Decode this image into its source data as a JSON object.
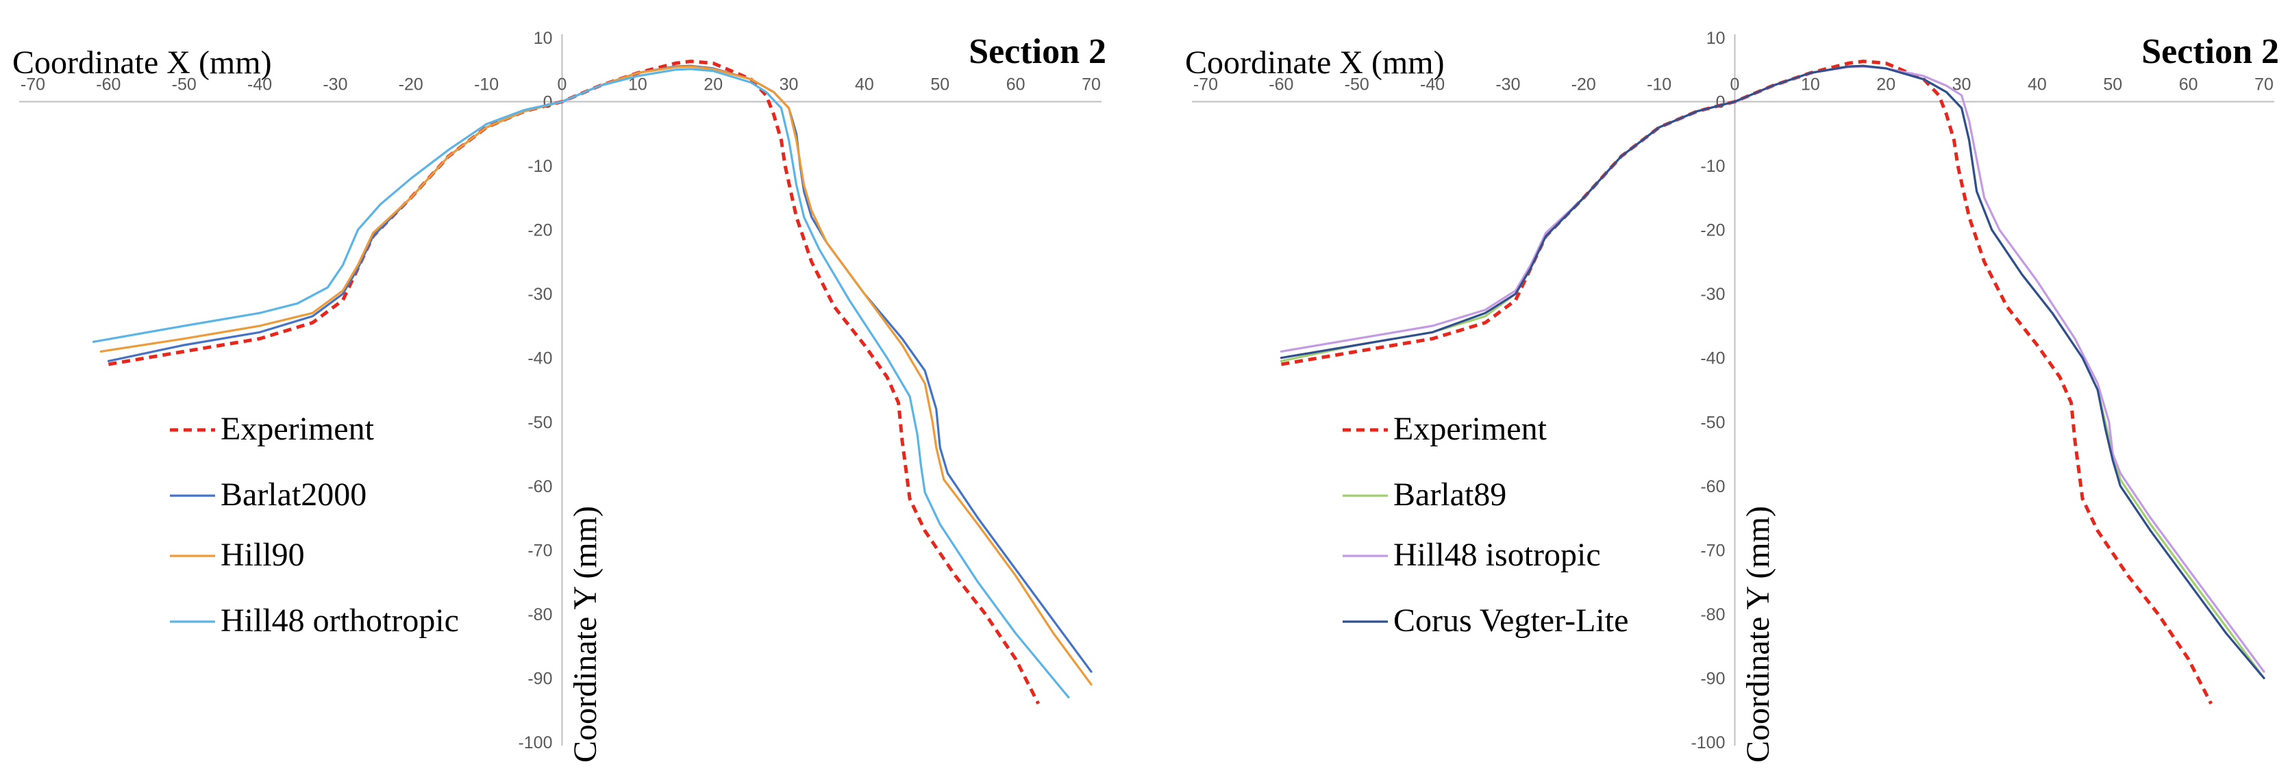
{
  "chart_data": [
    {
      "type": "line",
      "title": "Section 2",
      "xlabel": "Coordinate X (mm)",
      "ylabel": "Coordinate Y (mm)",
      "xlim": [
        -70,
        70
      ],
      "ylim": [
        -100,
        10
      ],
      "xticks": [
        -70,
        -60,
        -50,
        -40,
        -30,
        -20,
        -10,
        0,
        10,
        20,
        30,
        40,
        50,
        60,
        70
      ],
      "yticks": [
        10,
        0,
        -10,
        -20,
        -30,
        -40,
        -50,
        -60,
        -70,
        -80,
        -90,
        -100
      ],
      "grid": false,
      "legend_position": "left",
      "series": [
        {
          "name": "Experiment",
          "color": "#e8261c",
          "dash": true,
          "x": [
            -60,
            -50,
            -40,
            -33,
            -29,
            -27,
            -25,
            -20,
            -15,
            -10,
            -5,
            0,
            5,
            10,
            15,
            17,
            20,
            25,
            27,
            28,
            29,
            29.5,
            31,
            33,
            36,
            40,
            43,
            44.5,
            45,
            46,
            48,
            52,
            56,
            60,
            63
          ],
          "y": [
            -41,
            -39,
            -37,
            -34.5,
            -31,
            -26,
            -21,
            -15,
            -8.5,
            -4,
            -1.5,
            0,
            2.5,
            4.5,
            6,
            6.3,
            6,
            3.5,
            1,
            -2,
            -6,
            -10,
            -18,
            -25,
            -32,
            -38,
            -43,
            -47,
            -53,
            -62,
            -67,
            -74,
            -80,
            -87,
            -94
          ]
        },
        {
          "name": "Barlat2000",
          "color": "#4472c4",
          "dash": false,
          "x": [
            -60,
            -50,
            -40,
            -33,
            -29,
            -27,
            -25,
            -20,
            -15,
            -10,
            -5,
            0,
            5,
            10,
            15,
            17,
            20,
            25,
            28,
            30,
            31,
            31.5,
            32,
            33,
            35,
            40,
            45,
            48,
            49.5,
            50,
            51,
            55,
            60,
            65,
            70
          ],
          "y": [
            -40.5,
            -38,
            -36,
            -33.5,
            -30,
            -26,
            -21,
            -15,
            -8.5,
            -4,
            -1.5,
            0,
            2.5,
            4.5,
            5.5,
            5.6,
            5.2,
            3.5,
            1.5,
            -1,
            -5,
            -10,
            -14,
            -18,
            -22,
            -30,
            -37,
            -42,
            -48,
            -54,
            -58,
            -65,
            -73,
            -81,
            -89
          ]
        },
        {
          "name": "Hill90",
          "color": "#ed9b38",
          "dash": false,
          "x": [
            -61,
            -50,
            -40,
            -33,
            -29,
            -27,
            -25,
            -20,
            -15,
            -10,
            -5,
            0,
            5,
            10,
            15,
            17,
            20,
            25,
            28,
            30,
            31,
            32,
            33,
            35,
            40,
            45,
            48,
            49,
            49.5,
            50.5,
            55,
            60,
            65,
            70
          ],
          "y": [
            -39,
            -37,
            -35,
            -33,
            -29.5,
            -25.5,
            -20.5,
            -15,
            -8.5,
            -4,
            -1.5,
            0,
            2.5,
            4.5,
            5.4,
            5.5,
            5.1,
            3.5,
            1.5,
            -1,
            -6,
            -13,
            -17,
            -22,
            -30,
            -38,
            -44,
            -50,
            -54,
            -59,
            -66,
            -74,
            -83,
            -91
          ]
        },
        {
          "name": "Hill48 orthotropic",
          "color": "#5bb4e6",
          "dash": false,
          "x": [
            -62,
            -50,
            -40,
            -35,
            -31,
            -29,
            -27,
            -24,
            -20,
            -15,
            -10,
            -5,
            0,
            5,
            10,
            15,
            17,
            20,
            25,
            27,
            29,
            30,
            31,
            32,
            34,
            38,
            43,
            46,
            47,
            47.5,
            48,
            50,
            55,
            60,
            67
          ],
          "y": [
            -37.5,
            -35,
            -33,
            -31.5,
            -29,
            -25.5,
            -20,
            -16,
            -12,
            -7.5,
            -3.5,
            -1.3,
            0,
            2.5,
            4,
            5,
            5.1,
            4.8,
            3,
            1.5,
            -1,
            -6,
            -13,
            -18,
            -23,
            -31,
            -40,
            -46,
            -52,
            -57,
            -61,
            -66,
            -75,
            -83,
            -93
          ]
        }
      ]
    },
    {
      "type": "line",
      "title": "Section 2",
      "xlabel": "Coordinate X (mm)",
      "ylabel": "Coordinate Y (mm)",
      "xlim": [
        -70,
        70
      ],
      "ylim": [
        -100,
        10
      ],
      "xticks": [
        -70,
        -60,
        -50,
        -40,
        -30,
        -20,
        -10,
        0,
        10,
        20,
        30,
        40,
        50,
        60,
        70
      ],
      "yticks": [
        10,
        0,
        -10,
        -20,
        -30,
        -40,
        -50,
        -60,
        -70,
        -80,
        -90,
        -100
      ],
      "grid": false,
      "legend_position": "left",
      "series": [
        {
          "name": "Experiment",
          "color": "#e8261c",
          "dash": true,
          "x": [
            -60,
            -50,
            -40,
            -33,
            -29,
            -27,
            -25,
            -20,
            -15,
            -10,
            -5,
            0,
            5,
            10,
            15,
            17,
            20,
            25,
            27,
            28,
            29,
            29.5,
            31,
            33,
            36,
            40,
            43,
            44.5,
            45,
            46,
            48,
            52,
            56,
            60,
            63
          ],
          "y": [
            -41,
            -39,
            -37,
            -34.5,
            -31,
            -26,
            -21,
            -15,
            -8.5,
            -4,
            -1.5,
            0,
            2.5,
            4.5,
            6,
            6.3,
            6,
            3.5,
            1,
            -2,
            -6,
            -10,
            -18,
            -25,
            -32,
            -38,
            -43,
            -47,
            -53,
            -62,
            -67,
            -74,
            -80,
            -87,
            -94
          ]
        },
        {
          "name": "Barlat89",
          "color": "#9fcf6e",
          "dash": false,
          "x": [
            -60,
            -50,
            -40,
            -33,
            -29,
            -27,
            -25,
            -20,
            -15,
            -10,
            -5,
            0,
            5,
            10,
            15,
            17,
            20,
            25,
            28,
            30,
            31,
            32,
            34,
            38,
            42,
            46,
            48,
            49,
            50,
            51,
            55,
            60,
            65,
            70
          ],
          "y": [
            -40.5,
            -38,
            -36,
            -33.5,
            -30,
            -26,
            -21,
            -15,
            -8.5,
            -4,
            -1.5,
            0,
            2.5,
            4.5,
            5.5,
            5.6,
            5.2,
            3.5,
            1.5,
            -1,
            -6,
            -14,
            -20,
            -27,
            -33,
            -40,
            -45,
            -50,
            -55,
            -59,
            -66,
            -74,
            -82,
            -90
          ]
        },
        {
          "name": "Hill48 isotropic",
          "color": "#c39be3",
          "dash": false,
          "x": [
            -60,
            -50,
            -40,
            -33,
            -29,
            -27,
            -25,
            -20,
            -15,
            -10,
            -5,
            0,
            5,
            10,
            15,
            17,
            20,
            25,
            28,
            30,
            31,
            32,
            33,
            35,
            40,
            45,
            48,
            49.5,
            50,
            51,
            55,
            60,
            65,
            70
          ],
          "y": [
            -39,
            -37,
            -35,
            -32.5,
            -29.5,
            -25.5,
            -20.5,
            -15,
            -8.5,
            -4,
            -1.5,
            0,
            2.5,
            4.5,
            5.4,
            5.5,
            5.2,
            4,
            2.5,
            1,
            -3,
            -9,
            -15,
            -20,
            -28,
            -37,
            -44,
            -50,
            -55,
            -58,
            -65,
            -73,
            -81,
            -89
          ]
        },
        {
          "name": "Corus Vegter-Lite",
          "color": "#2f4f8f",
          "dash": false,
          "x": [
            -60,
            -50,
            -40,
            -33,
            -29,
            -27,
            -25,
            -20,
            -15,
            -10,
            -5,
            0,
            5,
            10,
            15,
            17,
            20,
            25,
            28,
            30,
            31,
            32,
            34,
            38,
            42,
            46,
            48,
            49,
            50,
            51,
            55,
            60,
            65,
            70
          ],
          "y": [
            -40,
            -38,
            -36,
            -33,
            -30,
            -26,
            -21,
            -15,
            -8.5,
            -4,
            -1.5,
            0,
            2.5,
            4.5,
            5.5,
            5.6,
            5.2,
            3.5,
            1.5,
            -1,
            -6,
            -14,
            -20,
            -27,
            -33,
            -40,
            -45,
            -51,
            -56,
            -60,
            -67,
            -75,
            -83,
            -90
          ]
        }
      ]
    }
  ]
}
